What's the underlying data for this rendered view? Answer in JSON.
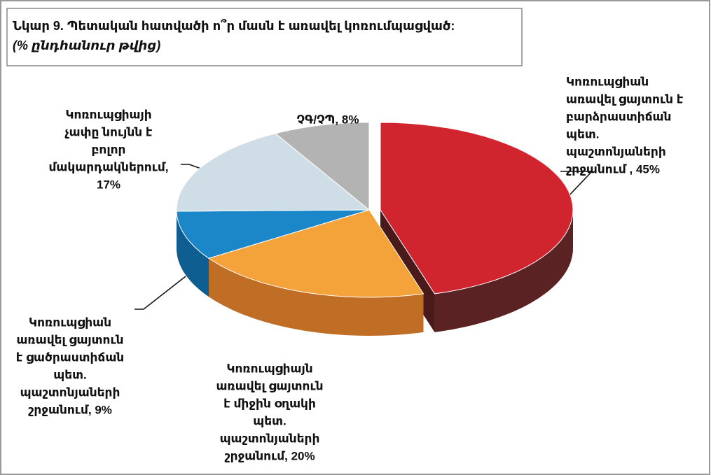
{
  "chart_data": {
    "type": "pie",
    "title": "Նկար 9. Պետական հատվածի ո՞ր մասն է առավել կոռումպացված:",
    "subtitle": "(% ընդհանուր թվից)",
    "values": [
      45,
      20,
      9,
      17,
      8
    ],
    "colors": [
      "#d0252f",
      "#f4a23a",
      "#1b86c8",
      "#cfdee6",
      "#b3b3b3"
    ],
    "side_colors": [
      "#5a2222",
      "#c06d25",
      "#0f5e92",
      "#a9b9c1",
      "#8f8f8f"
    ],
    "value_labels": [
      [
        "Կոռուպցիան",
        "առավել ցայտուն  է",
        "բարձրաստիճան",
        "պետ.",
        "պաշտոնյաների",
        "շրջանում , 45%"
      ],
      [
        "Կոռուպցիայն",
        "առավել ցայտուն",
        "է միջին օղակի",
        "պետ.",
        "պաշտոնյաների",
        "շրջանում,   20%"
      ],
      [
        "Կոռուպցիան",
        "առավել ցայտուն",
        "է ցածրաստիճան",
        "պետ.",
        "պաշտոնյաների",
        "շրջանում, 9%"
      ],
      [
        "Կոռուպցիայի",
        "չափը նույնն է",
        "բոլոր",
        "մակարդակներում,",
        "17%"
      ],
      [
        "ՉԳ/ՉՊ, 8%"
      ]
    ]
  }
}
